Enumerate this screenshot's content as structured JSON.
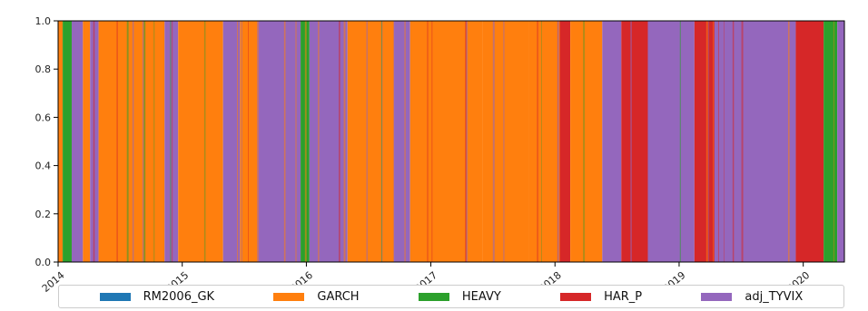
{
  "chart_data": {
    "type": "area",
    "stacked": true,
    "normalized": true,
    "title": "",
    "xlabel": "",
    "ylabel": "",
    "xlim": [
      "2014-01-01",
      "2020-05-01"
    ],
    "ylim": [
      0.0,
      1.0
    ],
    "yticks": [
      0.0,
      0.2,
      0.4,
      0.6,
      0.8,
      1.0
    ],
    "ytick_labels": [
      "0.0",
      "0.2",
      "0.4",
      "0.6",
      "0.8",
      "1.0"
    ],
    "xticks": [
      "2014-01-01",
      "2015-01-01",
      "2016-01-01",
      "2017-01-01",
      "2018-01-01",
      "2019-01-01",
      "2020-01-01"
    ],
    "xtick_labels": [
      "2014",
      "2015",
      "2016",
      "2017",
      "2018",
      "2019",
      "2020"
    ],
    "legend_placement": "bottom",
    "grid": false,
    "series": [
      {
        "name": "RM2006_GK",
        "color": "#1f77b4"
      },
      {
        "name": "GARCH",
        "color": "#ff7f0e"
      },
      {
        "name": "HEAVY",
        "color": "#2ca02c"
      },
      {
        "name": "HAR_P",
        "color": "#d62728"
      },
      {
        "name": "adj_TYVIX",
        "color": "#9467bd"
      }
    ],
    "dominant_model_periods": [
      {
        "start": "2014-01-01",
        "end": "2014-01-15",
        "model": "GARCH"
      },
      {
        "start": "2014-01-15",
        "end": "2014-02-10",
        "model": "HEAVY"
      },
      {
        "start": "2014-02-10",
        "end": "2014-03-15",
        "model": "adj_TYVIX"
      },
      {
        "start": "2014-03-15",
        "end": "2014-04-05",
        "model": "GARCH"
      },
      {
        "start": "2014-04-05",
        "end": "2014-04-30",
        "model": "adj_TYVIX"
      },
      {
        "start": "2014-04-30",
        "end": "2014-11-10",
        "model": "GARCH"
      },
      {
        "start": "2014-11-10",
        "end": "2014-12-20",
        "model": "adj_TYVIX"
      },
      {
        "start": "2014-12-20",
        "end": "2015-05-01",
        "model": "GARCH"
      },
      {
        "start": "2015-05-01",
        "end": "2015-06-20",
        "model": "adj_TYVIX"
      },
      {
        "start": "2015-06-20",
        "end": "2015-08-10",
        "model": "GARCH"
      },
      {
        "start": "2015-08-10",
        "end": "2015-12-15",
        "model": "adj_TYVIX"
      },
      {
        "start": "2015-12-15",
        "end": "2016-01-10",
        "model": "HEAVY"
      },
      {
        "start": "2016-01-10",
        "end": "2016-05-01",
        "model": "adj_TYVIX"
      },
      {
        "start": "2016-05-01",
        "end": "2016-09-15",
        "model": "GARCH"
      },
      {
        "start": "2016-09-15",
        "end": "2016-11-01",
        "model": "adj_TYVIX"
      },
      {
        "start": "2016-11-01",
        "end": "2017-06-01",
        "model": "GARCH"
      },
      {
        "start": "2017-06-01",
        "end": "2017-10-15",
        "model": "GARCH"
      },
      {
        "start": "2017-10-15",
        "end": "2018-01-15",
        "model": "GARCH"
      },
      {
        "start": "2018-01-15",
        "end": "2018-02-15",
        "model": "HAR_P"
      },
      {
        "start": "2018-02-15",
        "end": "2018-05-20",
        "model": "GARCH"
      },
      {
        "start": "2018-05-20",
        "end": "2018-07-15",
        "model": "adj_TYVIX"
      },
      {
        "start": "2018-07-15",
        "end": "2018-10-01",
        "model": "HAR_P"
      },
      {
        "start": "2018-10-01",
        "end": "2019-02-15",
        "model": "adj_TYVIX"
      },
      {
        "start": "2019-02-15",
        "end": "2019-04-15",
        "model": "HAR_P"
      },
      {
        "start": "2019-04-15",
        "end": "2019-12-10",
        "model": "adj_TYVIX"
      },
      {
        "start": "2019-12-10",
        "end": "2020-03-01",
        "model": "HAR_P"
      },
      {
        "start": "2020-03-01",
        "end": "2020-04-10",
        "model": "HEAVY"
      },
      {
        "start": "2020-04-10",
        "end": "2020-05-01",
        "model": "adj_TYVIX"
      }
    ]
  }
}
